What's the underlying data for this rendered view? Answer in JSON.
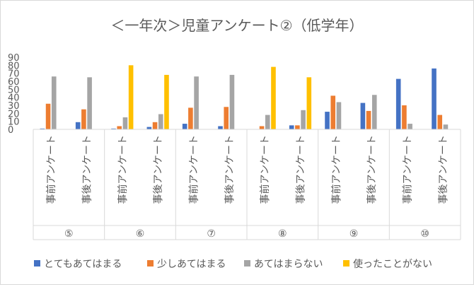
{
  "chart_data": {
    "type": "bar",
    "title": "＜一年次＞児童アンケート②（低学年）",
    "xlabel": "",
    "ylabel": "",
    "ylim": [
      0,
      90
    ],
    "y_ticks": [
      0,
      10,
      20,
      30,
      40,
      50,
      60,
      70,
      80,
      90
    ],
    "grid": false,
    "legend_position": "bottom",
    "groups": [
      "⑤",
      "⑥",
      "⑦",
      "⑧",
      "⑨",
      "⑩"
    ],
    "sub_categories": [
      "事前アンケート",
      "事後アンケート"
    ],
    "categories": [
      "⑤ 事前アンケート",
      "⑤ 事後アンケート",
      "⑥ 事前アンケート",
      "⑥ 事後アンケート",
      "⑦ 事前アンケート",
      "⑦ 事後アンケート",
      "⑧ 事前アンケート",
      "⑧ 事後アンケート",
      "⑨ 事前アンケート",
      "⑨ 事後アンケート",
      "⑩ 事前アンケート",
      "⑩ 事後アンケート"
    ],
    "series": [
      {
        "name": "とてもあてはまる",
        "color": "#4472c4",
        "values": [
          1,
          9,
          1,
          3,
          7,
          4,
          0,
          5,
          22,
          33,
          63,
          76
        ]
      },
      {
        "name": "少しあてはまる",
        "color": "#ed7d31",
        "values": [
          32,
          25,
          4,
          9,
          27,
          28,
          4,
          5,
          42,
          23,
          30,
          18
        ]
      },
      {
        "name": "あてはまらない",
        "color": "#a5a5a5",
        "values": [
          66,
          65,
          15,
          19,
          66,
          68,
          18,
          24,
          34,
          43,
          7,
          6
        ]
      },
      {
        "name": "使ったことがない",
        "color": "#ffc000",
        "values": [
          0,
          0,
          80,
          68,
          0,
          0,
          78,
          65,
          0,
          0,
          0,
          0
        ]
      }
    ]
  }
}
